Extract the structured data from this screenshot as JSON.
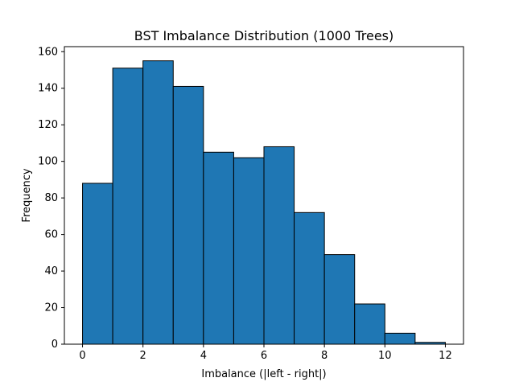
{
  "chart_data": {
    "type": "bar",
    "title": "BST Imbalance Distribution (1000 Trees)",
    "xlabel": "Imbalance (|left - right|)",
    "ylabel": "Frequency",
    "bins": [
      {
        "start": 0,
        "end": 1,
        "value": 88
      },
      {
        "start": 1,
        "end": 2,
        "value": 151
      },
      {
        "start": 2,
        "end": 3,
        "value": 155
      },
      {
        "start": 3,
        "end": 4,
        "value": 141
      },
      {
        "start": 4,
        "end": 5,
        "value": 105
      },
      {
        "start": 5,
        "end": 6,
        "value": 102
      },
      {
        "start": 6,
        "end": 7,
        "value": 108
      },
      {
        "start": 7,
        "end": 8,
        "value": 72
      },
      {
        "start": 8,
        "end": 9,
        "value": 49
      },
      {
        "start": 9,
        "end": 10,
        "value": 22
      },
      {
        "start": 10,
        "end": 11,
        "value": 6
      },
      {
        "start": 11,
        "end": 12,
        "value": 1
      }
    ],
    "x_ticks": [
      0,
      2,
      4,
      6,
      8,
      10,
      12
    ],
    "y_ticks": [
      0,
      20,
      40,
      60,
      80,
      100,
      120,
      140,
      160
    ],
    "xlim": [
      -0.6,
      12.6
    ],
    "ylim": [
      0,
      162.75
    ],
    "grid": false,
    "colors": {
      "bar_fill": "#1f77b4",
      "bar_edge": "#000000"
    }
  }
}
